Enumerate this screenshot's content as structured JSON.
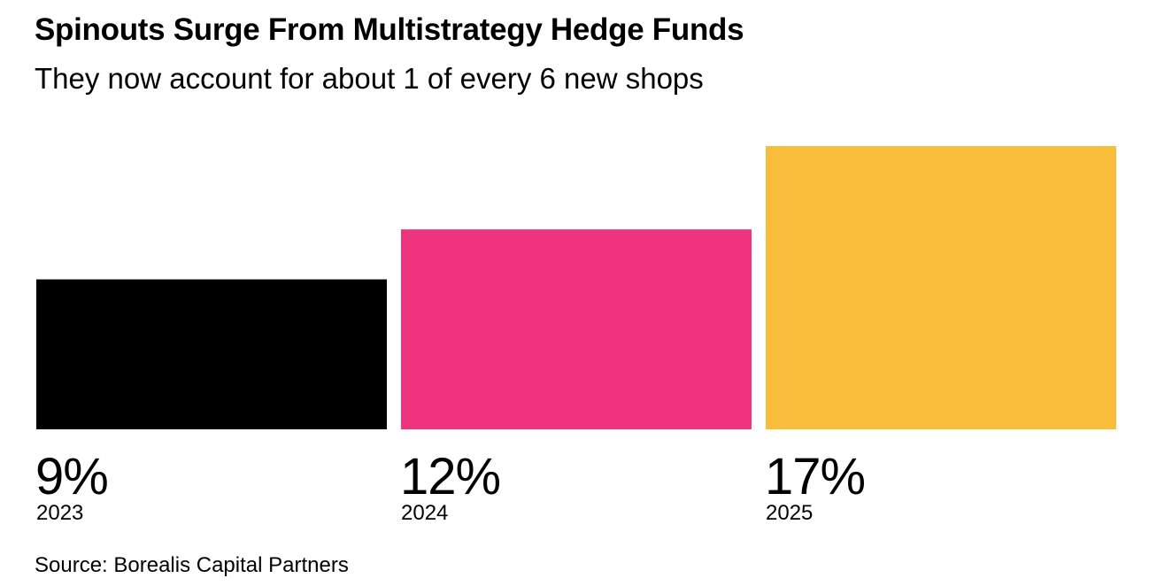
{
  "header": {
    "title": "Spinouts Surge From Multistrategy Hedge Funds",
    "subtitle": "They now account for about 1 of every 6 new shops"
  },
  "chart_data": {
    "type": "bar",
    "title": "Spinouts Surge From Multistrategy Hedge Funds",
    "subtitle": "They now account for about 1 of every 6 new shops",
    "categories": [
      "2023",
      "2024",
      "2025"
    ],
    "values": [
      9,
      12,
      17
    ],
    "value_labels": [
      "9%",
      "12%",
      "17%"
    ],
    "unit": "%",
    "colors": [
      "#000000",
      "#f0337e",
      "#f8bd3a"
    ],
    "xlabel": "",
    "ylabel": "",
    "ylim": [
      0,
      17
    ],
    "grid": false,
    "legend": "none"
  },
  "footer": {
    "source": "Source: Borealis Capital Partners"
  }
}
